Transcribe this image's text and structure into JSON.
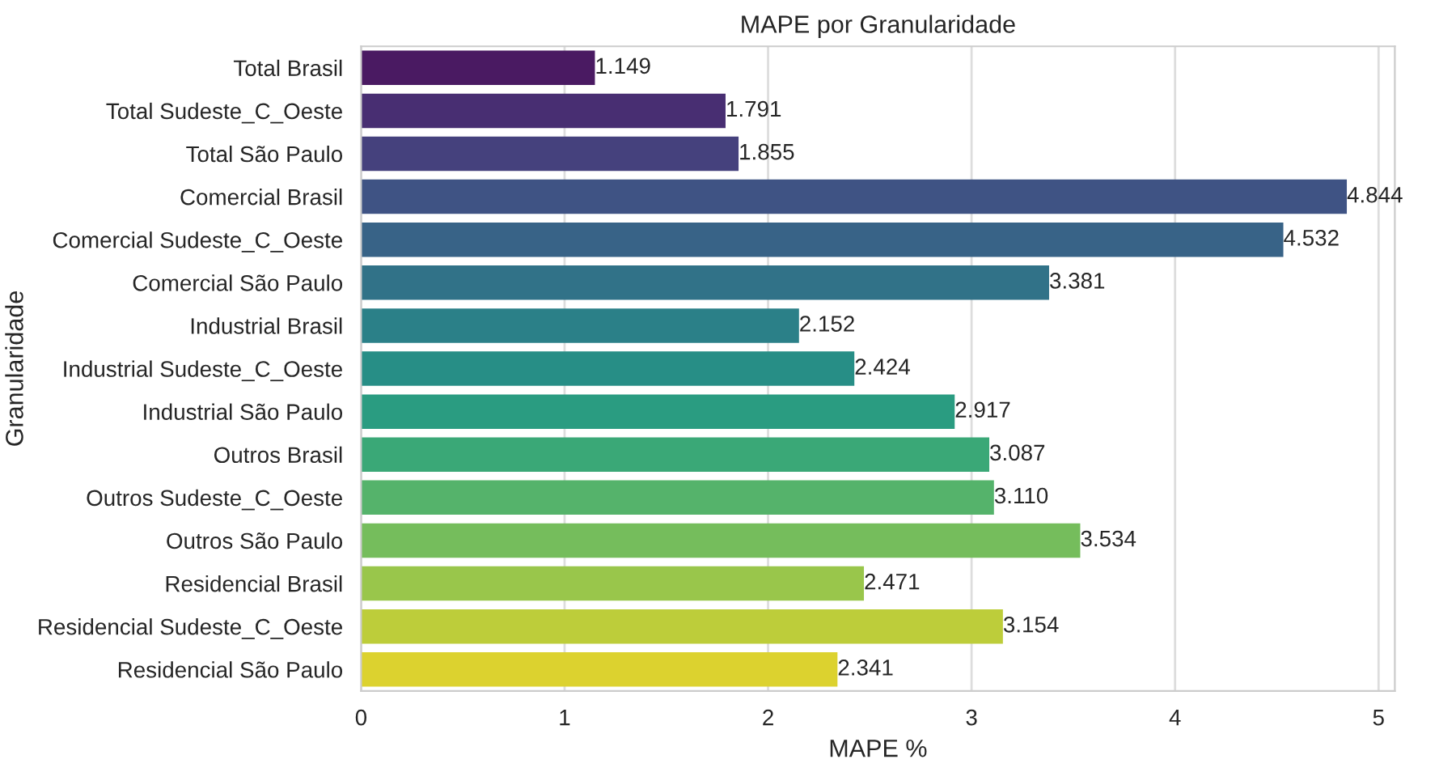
{
  "chart_data": {
    "type": "bar",
    "orientation": "horizontal",
    "title": "MAPE por Granularidade",
    "xlabel": "MAPE %",
    "ylabel": "Granularidade",
    "categories": [
      "Total Brasil",
      "Total Sudeste_C_Oeste",
      "Total São Paulo",
      "Comercial Brasil",
      "Comercial Sudeste_C_Oeste",
      "Comercial São Paulo",
      "Industrial Brasil",
      "Industrial Sudeste_C_Oeste",
      "Industrial São Paulo",
      "Outros Brasil",
      "Outros Sudeste_C_Oeste",
      "Outros São Paulo",
      "Residencial Brasil",
      "Residencial Sudeste_C_Oeste",
      "Residencial São Paulo"
    ],
    "values": [
      1.149,
      1.791,
      1.855,
      4.844,
      4.532,
      3.381,
      2.152,
      2.424,
      2.917,
      3.087,
      3.11,
      3.534,
      2.471,
      3.154,
      2.341
    ],
    "value_labels": [
      "1.149",
      "1.791",
      "1.855",
      "4.844",
      "4.532",
      "3.381",
      "2.152",
      "2.424",
      "2.917",
      "3.087",
      "3.110",
      "3.534",
      "2.471",
      "3.154",
      "2.341"
    ],
    "colors": [
      "#4a1a62",
      "#482e72",
      "#45417d",
      "#3f5384",
      "#386387",
      "#317288",
      "#2b8088",
      "#278e86",
      "#2a9c81",
      "#3aa877",
      "#55b36b",
      "#75bd5c",
      "#99c64b",
      "#bdcd3a",
      "#dcd22f"
    ],
    "xlim": [
      0,
      5.08
    ],
    "xticks": [
      0,
      1,
      2,
      3,
      4,
      5
    ],
    "grid": "x"
  }
}
